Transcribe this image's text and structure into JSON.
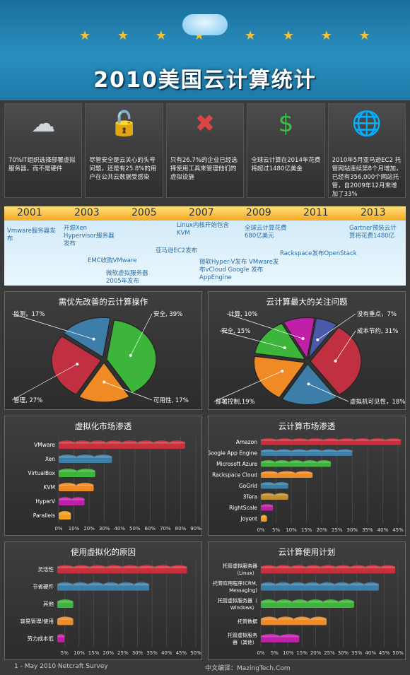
{
  "header": {
    "title": "2010美国云计算统计",
    "stars_left": "★ ★ ★ ★",
    "stars_right": "★ ★ ★ ★"
  },
  "stats": [
    {
      "icon": "cloud-icon",
      "glyph": "☁",
      "color": "#cfd6dc",
      "text": "70%IT组织选择部署虚拟服务器，而不是硬件"
    },
    {
      "icon": "lock-icon",
      "glyph": "🔓",
      "color": "#f0a830",
      "text": "尽管安全是云关心的头号问题，还是有25.8%的用户在公共云数据受感染"
    },
    {
      "icon": "tools-icon",
      "glyph": "✖",
      "color": "#d44",
      "text": "只有26.7%的企业已经选择使用工具来管理他们的虚拟设施"
    },
    {
      "icon": "dollar-icon",
      "glyph": "$",
      "color": "#3cbf4a",
      "text": "全球云计算在2014年花费将超过1480亿美金"
    },
    {
      "icon": "globe-icon",
      "glyph": "🌐",
      "color": "#4a8fd0",
      "text": "2010年5月亚马逊EC2 托管网站连续第8个月增加，已经有356,000个网站托管，自2009年12月来增加了33%"
    }
  ],
  "timeline": {
    "years": [
      "2001",
      "2003",
      "2005",
      "2007",
      "2009",
      "2011",
      "2013"
    ],
    "events": [
      {
        "text": "Vmware服务器发布",
        "x": 4,
        "y": 30,
        "w": 70
      },
      {
        "text": "开源Xen Hypervisor服务器发布",
        "x": 84,
        "y": 26,
        "w": 80
      },
      {
        "text": "EMC收购VMware",
        "x": 118,
        "y": 72,
        "w": 90
      },
      {
        "text": "微软虚拟服务器2005年发布",
        "x": 144,
        "y": 90,
        "w": 80
      },
      {
        "text": "Linux内核开始包含KVM",
        "x": 244,
        "y": 22,
        "w": 80
      },
      {
        "text": "亚马逊EC2发布",
        "x": 214,
        "y": 58,
        "w": 90
      },
      {
        "text": "微软Hyper-V发布 VMware发布vCloud Google 发布 AppEngine",
        "x": 276,
        "y": 74,
        "w": 120
      },
      {
        "text": "全球云计算花费680亿美元",
        "x": 340,
        "y": 26,
        "w": 70
      },
      {
        "text": "Rackspace发布OpenStack",
        "x": 390,
        "y": 62,
        "w": 120
      },
      {
        "text": "Gartner预装云计算将花费1480亿",
        "x": 488,
        "y": 26,
        "w": 75
      }
    ]
  },
  "chart_data": [
    {
      "type": "pie",
      "title": "需优先改善的云计算操作",
      "slices": [
        {
          "label": "安全, 39%",
          "value": 39,
          "color": "#3db43a"
        },
        {
          "label": "可用性, 17%",
          "value": 17,
          "color": "#f08a24"
        },
        {
          "label": "管理, 27%",
          "value": 27,
          "color": "#c03040"
        },
        {
          "label": "监测，17%",
          "value": 17,
          "color": "#3c7ea8"
        }
      ]
    },
    {
      "type": "pie",
      "title": "云计算最大的关注问题",
      "slices": [
        {
          "label": "没有重点，7%",
          "value": 7,
          "color": "#4a5aa8"
        },
        {
          "label": "成本节约, 31%",
          "value": 31,
          "color": "#c03040"
        },
        {
          "label": "虚拟机可见性，18%",
          "value": 18,
          "color": "#3c7ea8"
        },
        {
          "label": "部署控制,19%",
          "value": 19,
          "color": "#f08a24"
        },
        {
          "label": "安全, 15%",
          "value": 15,
          "color": "#3db43a"
        },
        {
          "label": "计算, 10%",
          "value": 10,
          "color": "#c020a8"
        }
      ]
    },
    {
      "type": "bar",
      "title": "虚拟化市场渗透",
      "categories": [
        "VMware",
        "Xen",
        "VirtualBox",
        "KVM",
        "HyperV",
        "Parallels"
      ],
      "values": [
        83,
        35,
        24,
        23,
        17,
        8
      ],
      "colors": [
        "#c8303e",
        "#3c7ea8",
        "#3db43a",
        "#f08a24",
        "#c020a8",
        "#f0a020"
      ],
      "ticks": [
        "0%",
        "10%",
        "20%",
        "30%",
        "40%",
        "50%",
        "60%",
        "70%",
        "80%",
        "90%"
      ],
      "xmax": 90
    },
    {
      "type": "bar",
      "title": "云计算市场渗透",
      "categories": [
        "Amazon",
        "Google App Engine",
        "Microsoft Azure",
        "Rackspace Cloud",
        "GoGrid",
        "3Tera",
        "RightScale",
        "Joyent"
      ],
      "values": [
        46,
        30,
        23,
        17,
        9,
        9,
        4,
        2
      ],
      "colors": [
        "#c8303e",
        "#3c7ea8",
        "#3db43a",
        "#f08a24",
        "#3c7ea8",
        "#c09030",
        "#c020a8",
        "#f0a020"
      ],
      "ticks": [
        "0%",
        "5%",
        "10%",
        "15%",
        "20%",
        "25%",
        "30%",
        "35%",
        "40%",
        "45%"
      ],
      "xmax": 45
    },
    {
      "type": "bar",
      "title": "使用虚拟化的原因",
      "categories": [
        "灵活性",
        "节省硬件",
        "其他",
        "容易管理/使用",
        "劳力成本低"
      ],
      "values": [
        47,
        34,
        8,
        8,
        5
      ],
      "colors": [
        "#c8303e",
        "#3c7ea8",
        "#3db43a",
        "#f08a24",
        "#c020a8"
      ],
      "ticks": [
        "5%",
        "10%",
        "15%",
        "20%",
        "25%",
        "30%",
        "35%",
        "40%",
        "45%",
        "50%"
      ],
      "xmin": 2.5,
      "xmax": 50
    },
    {
      "type": "bar",
      "title": "云计算使用计划",
      "categories": [
        "托管虚拟服务器（Linux）",
        "托管应用程序(CRM, Messaging)",
        "托管虚拟服务器（Windows）",
        "托管数据",
        "托管虚拟服务器（其他）"
      ],
      "values": [
        49,
        43,
        34,
        24,
        14
      ],
      "colors": [
        "#c8303e",
        "#3c7ea8",
        "#3db43a",
        "#f08a24",
        "#c020a8"
      ],
      "ticks": [
        "0%",
        "5%",
        "10%",
        "15%",
        "20%",
        "25%",
        "30%",
        "35%",
        "40%",
        "45%",
        "50%"
      ],
      "xmax": 50
    }
  ],
  "footer": {
    "left": "1 - May 2010 Netcraft Survey",
    "right": "中文编译：MazingTech.Com"
  }
}
